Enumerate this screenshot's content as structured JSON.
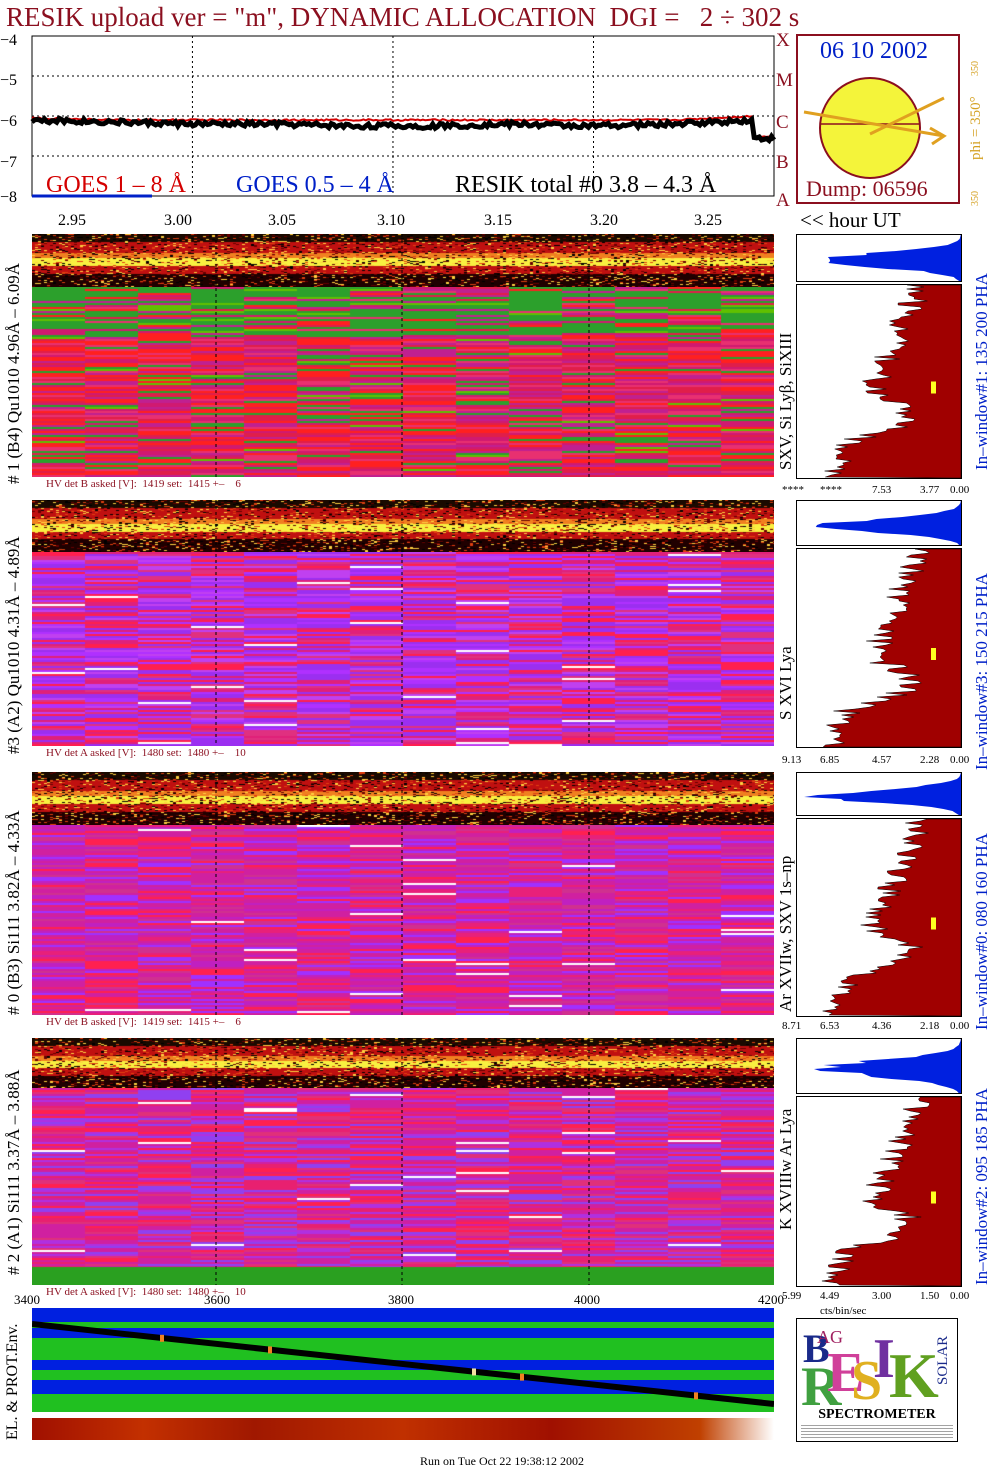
{
  "title": "RESIK upload ver = \"m\", DYNAMIC ALLOCATION  DGI =   2 ÷ 302 s",
  "goes_panel": {
    "yticks": [
      "−4",
      "−5",
      "−6",
      "−7",
      "−8"
    ],
    "legend_goes18": "GOES 1 – 8 Å",
    "legend_goes054": "GOES 0.5 – 4 Å",
    "legend_resik": "RESIK total #0  3.8 – 4.3 Å",
    "flags": [
      "X",
      "M",
      "C",
      "B",
      "A"
    ]
  },
  "orbit": {
    "date": "06 10 2002",
    "dump": "Dump: 06596",
    "phi": "phi = 350°",
    "phi_small": "350",
    "phi_bottom": "350"
  },
  "time_axis": {
    "labels": [
      "2.95",
      "3.00",
      "3.05",
      "3.10",
      "3.15",
      "3.20",
      "3.25"
    ],
    "unit_label": "<< hour UT"
  },
  "detectors": [
    {
      "left_label": "# 1 (B4) Qu1010 4.96Å – 6.09Å",
      "line_label": "SXV, Si Lyβ, SiXIII",
      "window_label": "In–window#1:  135 200 PHA",
      "hv_text": "HV det B asked [V]:  1419 set:  1415 +–    6",
      "spec_ticks": [
        "****",
        "****",
        "7.53",
        "3.77",
        "0.00"
      ]
    },
    {
      "left_label": "#3 (A2) Qu1010  4.31Å – 4.89Å",
      "line_label": "S XVI Lya",
      "window_label": "In–window#3:  150 215 PHA",
      "hv_text": "HV det A asked [V]:  1480 set:  1480 +–    10",
      "spec_ticks": [
        "9.13",
        "6.85",
        "4.57",
        "2.28",
        "0.00"
      ]
    },
    {
      "left_label": "# 0 (B3) Si111  3.82Å – 4.33Å",
      "line_label": "Ar XVIIw,  SXV 1s–np",
      "window_label": "In–window#0:  080 160 PHA",
      "hv_text": "HV det B asked [V]:  1419 set:  1415 +–    6",
      "spec_ticks": [
        "8.71",
        "6.53",
        "4.36",
        "2.18",
        "0.00"
      ]
    },
    {
      "left_label": "# 2 (A1) Si111  3.37Å – 3.88Å",
      "line_label": "K XVIIIw  Ar Lya",
      "window_label": "In–window#2:  095 185 PHA",
      "hv_text": "HV det A asked [V]:  1480 set:  1480 +–    10",
      "spec_ticks": [
        "5.99",
        "4.49",
        "3.00",
        "1.50",
        "0.00"
      ]
    }
  ],
  "spec_unit": "cts/bin/sec",
  "pha_axis": [
    "3400",
    "3600",
    "3800",
    "4000",
    "4200"
  ],
  "env_label": "EL. & PROT.Env.",
  "logo": {
    "bottom_text": "SPECTROMETER",
    "letters": [
      "B",
      "R",
      "E",
      "S",
      "I",
      "K",
      "SOLAR",
      "AG"
    ]
  },
  "footer": "Run on Tue Oct 22 19:38:12 2002",
  "chart_data": {
    "type": "line",
    "title": "RESIK upload ver = \"m\", DYNAMIC ALLOCATION  DGI =   2 ÷ 302 s",
    "xlabel": "<< hour UT",
    "ylabel": "",
    "x": [
      2.92,
      2.96,
      3.0,
      3.04,
      3.08,
      3.12,
      3.16,
      3.2,
      3.24,
      3.28
    ],
    "series": [
      {
        "name": "RESIK total #0  3.8 – 4.3 Å",
        "values": [
          -6.1,
          -6.15,
          -6.2,
          -6.2,
          -6.25,
          -6.25,
          -6.2,
          -6.25,
          -6.2,
          -6.1
        ]
      },
      {
        "name": "GOES 1 – 8 Å",
        "values": [
          -6.05,
          -6.1,
          -6.1,
          -6.1,
          -6.1,
          -6.1,
          -6.1,
          -6.1,
          -6.1,
          -6.0
        ]
      }
    ],
    "ylim": [
      -8,
      -4
    ],
    "xlim": [
      2.92,
      3.29
    ],
    "grid": true
  },
  "colors": {
    "title": "#8b0f1f",
    "goes18": "#d40000",
    "goes054": "#0020c8",
    "orbit_ring": "#8b0f1f",
    "sun": "#f4f43a",
    "arrow": "#e0a020",
    "spectrum_fill": "#a00000",
    "pha_fill": "#0020e0",
    "phi_text": "#d4a020"
  }
}
